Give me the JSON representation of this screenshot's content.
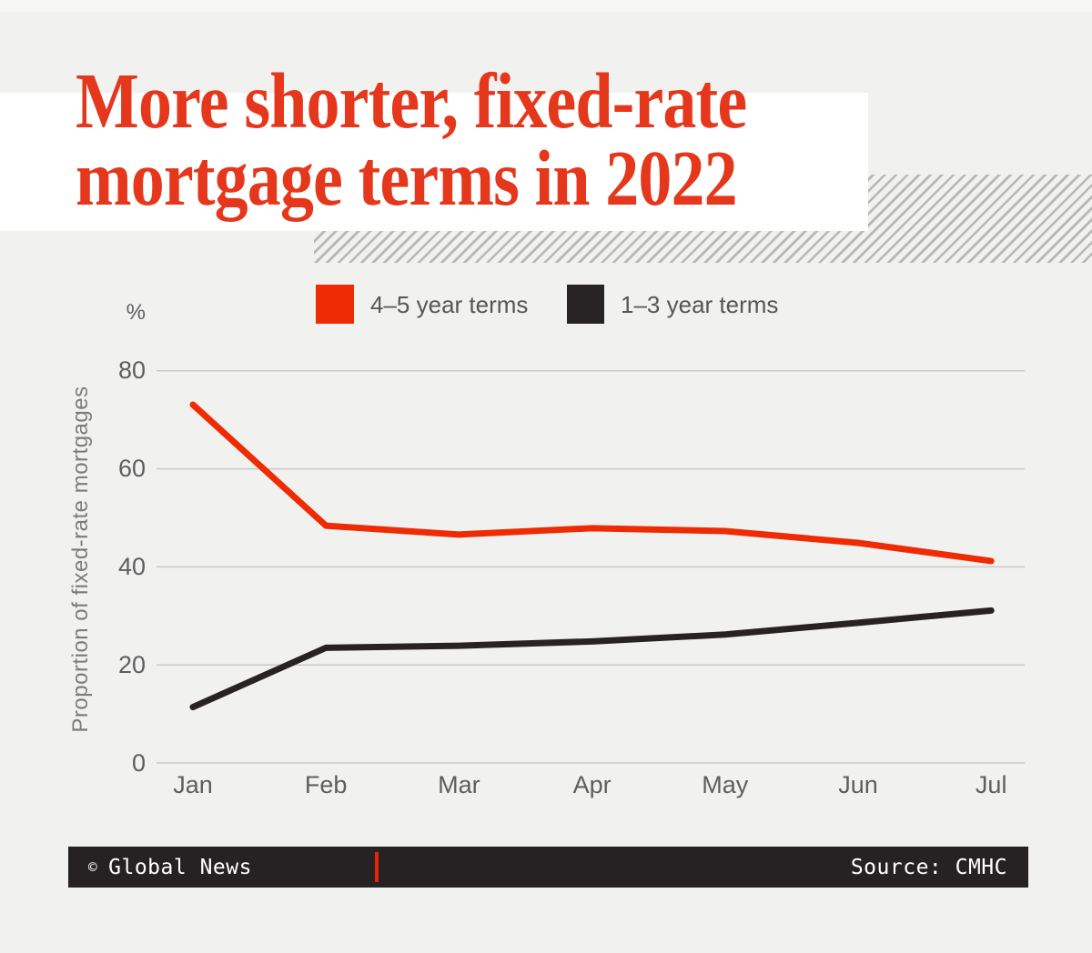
{
  "title": {
    "line1": "More shorter, fixed-rate",
    "line2": "mortgage terms in 2022"
  },
  "legend": {
    "items": [
      {
        "label": "4–5 year terms",
        "color": "#ee2b02"
      },
      {
        "label": "1–3 year terms",
        "color": "#272324"
      }
    ]
  },
  "axes": {
    "y_unit": "%",
    "y_title": "Proportion of fixed-rate mortgages",
    "y_ticks": [
      80,
      60,
      40,
      20,
      0
    ],
    "x_labels": [
      "Jan",
      "Feb",
      "Mar",
      "Apr",
      "May",
      "Jun",
      "Jul"
    ]
  },
  "chart_data": {
    "type": "line",
    "title": "More shorter, fixed-rate mortgage terms in 2022",
    "x": [
      "Jan",
      "Feb",
      "Mar",
      "Apr",
      "May",
      "Jun",
      "Jul"
    ],
    "series": [
      {
        "name": "4–5 year terms",
        "color": "#ee2b02",
        "values": [
          73.1,
          48.4,
          46.6,
          47.9,
          47.3,
          44.9,
          41.2
        ]
      },
      {
        "name": "1–3 year terms",
        "color": "#272324",
        "values": [
          11.4,
          23.5,
          23.9,
          24.8,
          26.2,
          28.6,
          31.1
        ]
      }
    ],
    "xlabel": "",
    "ylabel": "Proportion of fixed-rate mortgages",
    "y_unit": "%",
    "ylim": [
      0,
      80
    ],
    "yticks": [
      0,
      20,
      40,
      60,
      80
    ],
    "grid": true,
    "legend_position": "top"
  },
  "colors": {
    "background": "#f1f1ef",
    "title_red": "#e5371b",
    "accent_red": "#ee2b02",
    "dark": "#272324",
    "gridline": "#c9c9c8"
  },
  "footer": {
    "copyright": "©",
    "publisher": "Global News",
    "source": "Source: CMHC"
  }
}
